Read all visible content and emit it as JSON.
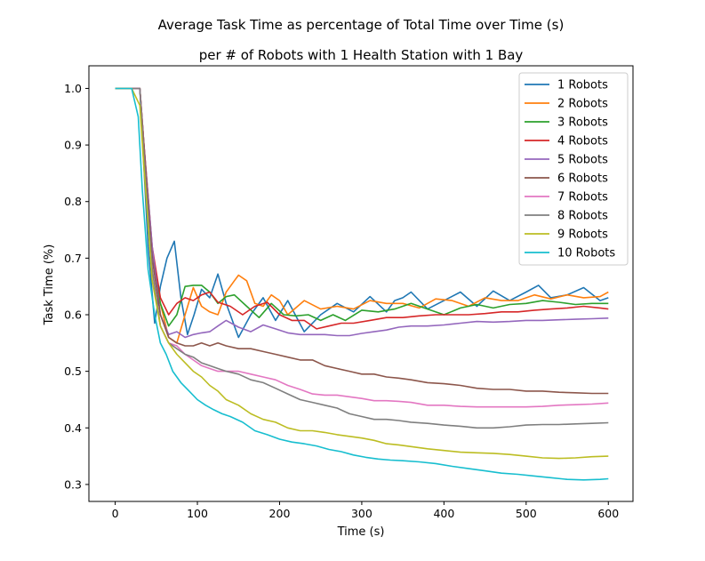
{
  "chart_data": {
    "type": "line",
    "title": "Average Task Time as percentage of Total Time over Time (s)",
    "subtitle": "per # of Robots with 1 Health Station with 1 Bay",
    "xlabel": "Time (s)",
    "ylabel": "Task Time (%)",
    "xlim": [
      -32,
      630
    ],
    "ylim": [
      0.27,
      1.04
    ],
    "xticks": [
      0,
      100,
      200,
      300,
      400,
      500,
      600
    ],
    "yticks": [
      0.3,
      0.4,
      0.5,
      0.6,
      0.7,
      0.8,
      0.9,
      1.0
    ],
    "ytick_labels": [
      "0.3",
      "0.4",
      "0.5",
      "0.6",
      "0.7",
      "0.8",
      "0.9",
      "1.0"
    ],
    "grid": false,
    "legend_position": "top-right",
    "series": [
      {
        "name": "1 Robots",
        "color": "#1f77b4",
        "x": [
          0,
          10,
          20,
          30,
          35,
          40,
          48,
          55,
          63,
          72,
          80,
          88,
          96,
          105,
          115,
          125,
          135,
          150,
          165,
          180,
          195,
          210,
          230,
          250,
          270,
          290,
          310,
          330,
          340,
          350,
          360,
          380,
          400,
          420,
          440,
          460,
          480,
          500,
          515,
          530,
          550,
          570,
          590,
          600
        ],
        "y": [
          1.0,
          1.0,
          1.0,
          1.0,
          0.86,
          0.72,
          0.585,
          0.65,
          0.7,
          0.73,
          0.63,
          0.565,
          0.6,
          0.645,
          0.63,
          0.672,
          0.62,
          0.56,
          0.6,
          0.63,
          0.59,
          0.625,
          0.57,
          0.6,
          0.62,
          0.605,
          0.632,
          0.605,
          0.625,
          0.63,
          0.64,
          0.61,
          0.625,
          0.64,
          0.615,
          0.642,
          0.625,
          0.64,
          0.652,
          0.63,
          0.635,
          0.648,
          0.625,
          0.63
        ]
      },
      {
        "name": "2 Robots",
        "color": "#ff7f0e",
        "x": [
          0,
          10,
          20,
          30,
          35,
          45,
          55,
          65,
          75,
          85,
          95,
          105,
          115,
          125,
          135,
          145,
          150,
          160,
          170,
          180,
          190,
          200,
          210,
          230,
          250,
          270,
          290,
          310,
          330,
          350,
          370,
          390,
          410,
          430,
          450,
          470,
          490,
          510,
          530,
          550,
          570,
          590,
          600
        ],
        "y": [
          1.0,
          1.0,
          1.0,
          1.0,
          0.9,
          0.7,
          0.62,
          0.56,
          0.55,
          0.6,
          0.648,
          0.615,
          0.605,
          0.6,
          0.64,
          0.66,
          0.67,
          0.66,
          0.62,
          0.615,
          0.635,
          0.625,
          0.6,
          0.625,
          0.61,
          0.615,
          0.61,
          0.625,
          0.62,
          0.62,
          0.612,
          0.628,
          0.625,
          0.615,
          0.63,
          0.625,
          0.625,
          0.635,
          0.628,
          0.635,
          0.63,
          0.632,
          0.64
        ]
      },
      {
        "name": "3 Robots",
        "color": "#2ca02c",
        "x": [
          0,
          10,
          20,
          30,
          35,
          45,
          55,
          65,
          75,
          85,
          95,
          105,
          115,
          125,
          135,
          145,
          160,
          175,
          190,
          205,
          220,
          235,
          250,
          265,
          280,
          300,
          320,
          340,
          360,
          380,
          400,
          420,
          440,
          460,
          480,
          500,
          520,
          540,
          560,
          580,
          600
        ],
        "y": [
          1.0,
          1.0,
          1.0,
          1.0,
          0.88,
          0.7,
          0.62,
          0.58,
          0.6,
          0.65,
          0.652,
          0.652,
          0.64,
          0.62,
          0.632,
          0.635,
          0.615,
          0.595,
          0.62,
          0.6,
          0.598,
          0.6,
          0.59,
          0.6,
          0.59,
          0.608,
          0.605,
          0.61,
          0.62,
          0.61,
          0.6,
          0.612,
          0.618,
          0.612,
          0.618,
          0.62,
          0.625,
          0.622,
          0.618,
          0.62,
          0.62
        ]
      },
      {
        "name": "4 Robots",
        "color": "#d62728",
        "x": [
          0,
          10,
          20,
          30,
          35,
          45,
          55,
          65,
          75,
          85,
          95,
          105,
          115,
          125,
          140,
          155,
          170,
          185,
          200,
          215,
          230,
          245,
          260,
          275,
          290,
          310,
          330,
          350,
          370,
          390,
          410,
          430,
          450,
          470,
          490,
          510,
          530,
          550,
          570,
          590,
          600
        ],
        "y": [
          1.0,
          1.0,
          1.0,
          1.0,
          0.9,
          0.72,
          0.63,
          0.6,
          0.62,
          0.63,
          0.625,
          0.635,
          0.64,
          0.622,
          0.615,
          0.6,
          0.615,
          0.622,
          0.6,
          0.59,
          0.59,
          0.575,
          0.58,
          0.585,
          0.585,
          0.59,
          0.595,
          0.595,
          0.598,
          0.6,
          0.6,
          0.6,
          0.602,
          0.605,
          0.605,
          0.608,
          0.61,
          0.612,
          0.615,
          0.612,
          0.61
        ]
      },
      {
        "name": "5 Robots",
        "color": "#9467bd",
        "x": [
          0,
          10,
          20,
          30,
          35,
          45,
          55,
          65,
          75,
          85,
          95,
          105,
          115,
          125,
          135,
          150,
          165,
          180,
          195,
          210,
          225,
          240,
          255,
          270,
          285,
          300,
          315,
          330,
          345,
          360,
          380,
          400,
          420,
          440,
          460,
          480,
          500,
          520,
          540,
          560,
          580,
          600
        ],
        "y": [
          1.0,
          1.0,
          1.0,
          1.0,
          0.9,
          0.72,
          0.6,
          0.565,
          0.57,
          0.56,
          0.565,
          0.568,
          0.57,
          0.58,
          0.59,
          0.578,
          0.57,
          0.582,
          0.575,
          0.568,
          0.565,
          0.565,
          0.565,
          0.563,
          0.563,
          0.567,
          0.57,
          0.573,
          0.578,
          0.58,
          0.58,
          0.582,
          0.585,
          0.588,
          0.587,
          0.588,
          0.59,
          0.59,
          0.591,
          0.592,
          0.593,
          0.594
        ]
      },
      {
        "name": "6 Robots",
        "color": "#8c564b",
        "x": [
          0,
          10,
          20,
          30,
          35,
          45,
          55,
          65,
          75,
          85,
          95,
          105,
          115,
          125,
          135,
          150,
          165,
          180,
          195,
          210,
          225,
          240,
          255,
          270,
          285,
          300,
          315,
          330,
          345,
          360,
          380,
          400,
          420,
          440,
          460,
          480,
          500,
          520,
          540,
          560,
          580,
          600
        ],
        "y": [
          1.0,
          1.0,
          1.0,
          1.0,
          0.9,
          0.7,
          0.6,
          0.56,
          0.55,
          0.545,
          0.545,
          0.55,
          0.545,
          0.55,
          0.545,
          0.54,
          0.54,
          0.535,
          0.53,
          0.525,
          0.52,
          0.52,
          0.51,
          0.505,
          0.5,
          0.495,
          0.495,
          0.49,
          0.488,
          0.485,
          0.48,
          0.478,
          0.475,
          0.47,
          0.468,
          0.468,
          0.465,
          0.465,
          0.463,
          0.462,
          0.461,
          0.461
        ]
      },
      {
        "name": "7 Robots",
        "color": "#e377c2",
        "x": [
          0,
          10,
          20,
          30,
          35,
          45,
          55,
          65,
          75,
          85,
          95,
          105,
          115,
          125,
          135,
          150,
          165,
          180,
          195,
          210,
          225,
          240,
          255,
          270,
          285,
          300,
          315,
          330,
          345,
          360,
          380,
          400,
          420,
          440,
          460,
          480,
          500,
          520,
          540,
          560,
          580,
          600
        ],
        "y": [
          1.0,
          1.0,
          1.0,
          1.0,
          0.88,
          0.68,
          0.58,
          0.55,
          0.545,
          0.53,
          0.52,
          0.51,
          0.505,
          0.5,
          0.5,
          0.5,
          0.495,
          0.49,
          0.485,
          0.475,
          0.468,
          0.46,
          0.458,
          0.458,
          0.455,
          0.452,
          0.448,
          0.448,
          0.447,
          0.445,
          0.44,
          0.44,
          0.438,
          0.437,
          0.437,
          0.437,
          0.437,
          0.438,
          0.44,
          0.441,
          0.442,
          0.444
        ]
      },
      {
        "name": "8 Robots",
        "color": "#7f7f7f",
        "x": [
          0,
          10,
          20,
          30,
          35,
          45,
          55,
          65,
          75,
          85,
          95,
          105,
          115,
          125,
          135,
          150,
          165,
          180,
          195,
          210,
          225,
          240,
          255,
          270,
          285,
          300,
          315,
          330,
          345,
          360,
          380,
          400,
          420,
          440,
          460,
          480,
          500,
          520,
          540,
          560,
          580,
          600
        ],
        "y": [
          1.0,
          1.0,
          1.0,
          1.0,
          0.88,
          0.68,
          0.58,
          0.55,
          0.54,
          0.53,
          0.525,
          0.515,
          0.51,
          0.505,
          0.5,
          0.495,
          0.485,
          0.48,
          0.47,
          0.46,
          0.45,
          0.445,
          0.44,
          0.435,
          0.425,
          0.42,
          0.415,
          0.415,
          0.413,
          0.41,
          0.408,
          0.405,
          0.403,
          0.4,
          0.4,
          0.402,
          0.405,
          0.406,
          0.406,
          0.407,
          0.408,
          0.409
        ]
      },
      {
        "name": "9 Robots",
        "color": "#bcbd22",
        "x": [
          0,
          10,
          20,
          30,
          35,
          45,
          55,
          65,
          75,
          85,
          95,
          105,
          115,
          125,
          135,
          150,
          165,
          180,
          195,
          210,
          225,
          240,
          255,
          270,
          285,
          300,
          315,
          330,
          345,
          360,
          380,
          400,
          420,
          440,
          460,
          480,
          500,
          520,
          540,
          560,
          580,
          600
        ],
        "y": [
          1.0,
          1.0,
          1.0,
          0.97,
          0.86,
          0.66,
          0.58,
          0.55,
          0.53,
          0.515,
          0.5,
          0.49,
          0.475,
          0.465,
          0.45,
          0.44,
          0.425,
          0.415,
          0.41,
          0.4,
          0.395,
          0.395,
          0.392,
          0.388,
          0.385,
          0.382,
          0.378,
          0.372,
          0.37,
          0.367,
          0.363,
          0.36,
          0.357,
          0.356,
          0.355,
          0.353,
          0.35,
          0.347,
          0.346,
          0.347,
          0.349,
          0.35
        ]
      },
      {
        "name": "10 Robots",
        "color": "#17becf",
        "x": [
          0,
          10,
          20,
          28,
          33,
          40,
          48,
          55,
          62,
          70,
          80,
          90,
          100,
          110,
          120,
          130,
          140,
          155,
          170,
          185,
          200,
          215,
          230,
          245,
          260,
          275,
          290,
          305,
          320,
          335,
          350,
          370,
          390,
          410,
          430,
          450,
          470,
          490,
          510,
          530,
          550,
          570,
          590,
          600
        ],
        "y": [
          1.0,
          1.0,
          1.0,
          0.95,
          0.82,
          0.68,
          0.6,
          0.55,
          0.53,
          0.5,
          0.48,
          0.465,
          0.45,
          0.44,
          0.432,
          0.425,
          0.42,
          0.41,
          0.395,
          0.388,
          0.38,
          0.375,
          0.372,
          0.368,
          0.362,
          0.358,
          0.352,
          0.348,
          0.345,
          0.343,
          0.342,
          0.34,
          0.337,
          0.332,
          0.328,
          0.324,
          0.32,
          0.318,
          0.315,
          0.312,
          0.309,
          0.308,
          0.309,
          0.31
        ]
      }
    ]
  }
}
